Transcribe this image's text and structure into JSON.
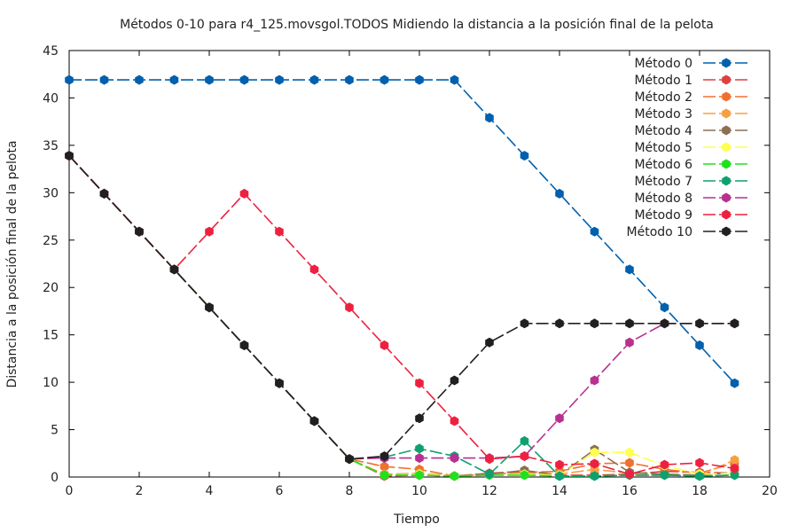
{
  "chart_data": {
    "type": "line",
    "title": "Métodos 0-10 para r4_125.movsgol.TODOS Midiendo la distancia a la posición final de la pelota",
    "xlabel": "Tiempo",
    "ylabel": "Distancia a la posición final de la pelota",
    "xlim": [
      0,
      20
    ],
    "ylim": [
      0,
      45
    ],
    "xticks": [
      "0",
      "2",
      "4",
      "6",
      "8",
      "10",
      "12",
      "14",
      "16",
      "18",
      "20"
    ],
    "yticks": [
      "0",
      "5",
      "10",
      "15",
      "20",
      "25",
      "30",
      "35",
      "40",
      "45"
    ],
    "grid": false,
    "legend_position": "top-right",
    "x": [
      0,
      1,
      2,
      3,
      4,
      5,
      6,
      7,
      8,
      9,
      10,
      11,
      12,
      13,
      14,
      15,
      16,
      17,
      18,
      19
    ],
    "series": [
      {
        "name": "Método 0",
        "color": "#0060ad",
        "values": [
          41.9,
          41.9,
          41.9,
          41.9,
          41.9,
          41.9,
          41.9,
          41.9,
          41.9,
          41.9,
          41.9,
          41.9,
          37.9,
          33.9,
          29.9,
          25.9,
          21.9,
          17.9,
          13.9,
          9.9
        ]
      },
      {
        "name": "Método 1",
        "color": "#dd4040",
        "values": [
          33.9,
          29.9,
          25.9,
          21.9,
          17.9,
          13.9,
          9.9,
          5.9,
          1.9,
          0.1,
          0.2,
          0.1,
          0.4,
          0.6,
          0.2,
          0.2,
          0.3,
          0.6,
          0.5,
          0.4
        ]
      },
      {
        "name": "Método 2",
        "color": "#f07030",
        "values": [
          33.9,
          29.9,
          25.9,
          21.9,
          17.9,
          13.9,
          9.9,
          5.9,
          1.9,
          1.1,
          0.8,
          0.1,
          0.3,
          0.5,
          0.6,
          1.4,
          1.5,
          0.8,
          0.4,
          1.5
        ]
      },
      {
        "name": "Método 3",
        "color": "#f8a040",
        "values": [
          33.9,
          29.9,
          25.9,
          21.9,
          17.9,
          13.9,
          9.9,
          5.9,
          1.9,
          0.3,
          0.4,
          0.1,
          0.2,
          0.4,
          0.3,
          0.8,
          0.4,
          0.3,
          0.2,
          1.8
        ]
      },
      {
        "name": "Método 4",
        "color": "#8a7050",
        "values": [
          33.9,
          29.9,
          25.9,
          21.9,
          17.9,
          13.9,
          9.9,
          5.9,
          1.9,
          0.2,
          0.3,
          0.1,
          0.3,
          0.7,
          0.2,
          2.9,
          0.5,
          0.3,
          0.2,
          0.5
        ]
      },
      {
        "name": "Método 5",
        "color": "#ffff50",
        "values": [
          33.9,
          29.9,
          25.9,
          21.9,
          17.9,
          13.9,
          9.9,
          5.9,
          1.9,
          0.2,
          0.3,
          0.1,
          0.2,
          0.3,
          0.2,
          2.6,
          2.6,
          1.2,
          0.3,
          0.4
        ]
      },
      {
        "name": "Método 6",
        "color": "#20e020",
        "values": [
          33.9,
          29.9,
          25.9,
          21.9,
          17.9,
          13.9,
          9.9,
          5.9,
          1.9,
          0.2,
          0.2,
          0.1,
          0.2,
          0.2,
          0.1,
          0.1,
          0.2,
          0.2,
          0.1,
          0.2
        ]
      },
      {
        "name": "Método 7",
        "color": "#10a070",
        "values": [
          33.9,
          29.9,
          25.9,
          21.9,
          17.9,
          13.9,
          9.9,
          5.9,
          1.9,
          2.1,
          3.0,
          2.2,
          0.3,
          3.8,
          0.1,
          0.1,
          0.2,
          0.2,
          0.1,
          0.2
        ]
      },
      {
        "name": "Método 8",
        "color": "#b83090",
        "values": [
          33.9,
          29.9,
          25.9,
          21.9,
          17.9,
          13.9,
          9.9,
          5.9,
          1.9,
          2.0,
          2.0,
          2.0,
          2.0,
          2.2,
          6.2,
          10.2,
          14.2,
          16.2,
          16.2,
          16.2
        ]
      },
      {
        "name": "Método 9",
        "color": "#ee2040",
        "values": [
          33.9,
          29.9,
          25.9,
          21.9,
          25.9,
          29.9,
          25.9,
          21.9,
          17.9,
          13.9,
          9.9,
          5.9,
          1.9,
          2.2,
          1.3,
          1.4,
          0.3,
          1.3,
          1.5,
          0.9
        ]
      },
      {
        "name": "Método 10",
        "color": "#202020",
        "values": [
          33.9,
          29.9,
          25.9,
          21.9,
          17.9,
          13.9,
          9.9,
          5.9,
          1.9,
          2.2,
          6.2,
          10.2,
          14.2,
          16.2,
          16.2,
          16.2,
          16.2,
          16.2,
          16.2,
          16.2
        ]
      }
    ]
  }
}
